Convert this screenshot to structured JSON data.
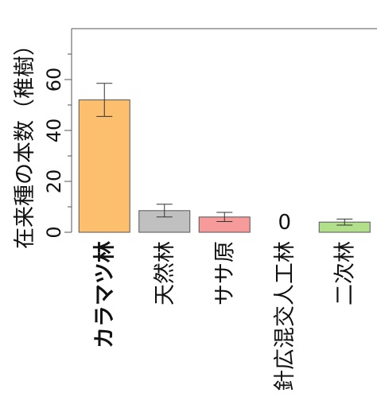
{
  "chart_data": {
    "type": "bar",
    "ylabel": "在来種の本数（稚樹）",
    "ylim": [
      0,
      80
    ],
    "yticks": [
      0,
      20,
      40,
      60
    ],
    "categories": [
      "カラマツ林",
      "天然林",
      "ササ原",
      "針広混交人工林",
      "二次林"
    ],
    "bold_category": "カラマツ林",
    "values": [
      52,
      8.5,
      6,
      0,
      4
    ],
    "errors": [
      6.5,
      2.5,
      1.8,
      0,
      1.2
    ],
    "data_labels": [
      "",
      "",
      "",
      "0",
      ""
    ],
    "colors": [
      "#fbbf6e",
      "#c0c0c0",
      "#f79a9a",
      "#ffffff",
      "#b2df8a"
    ],
    "bar_outline": "#555555",
    "grid": false
  }
}
